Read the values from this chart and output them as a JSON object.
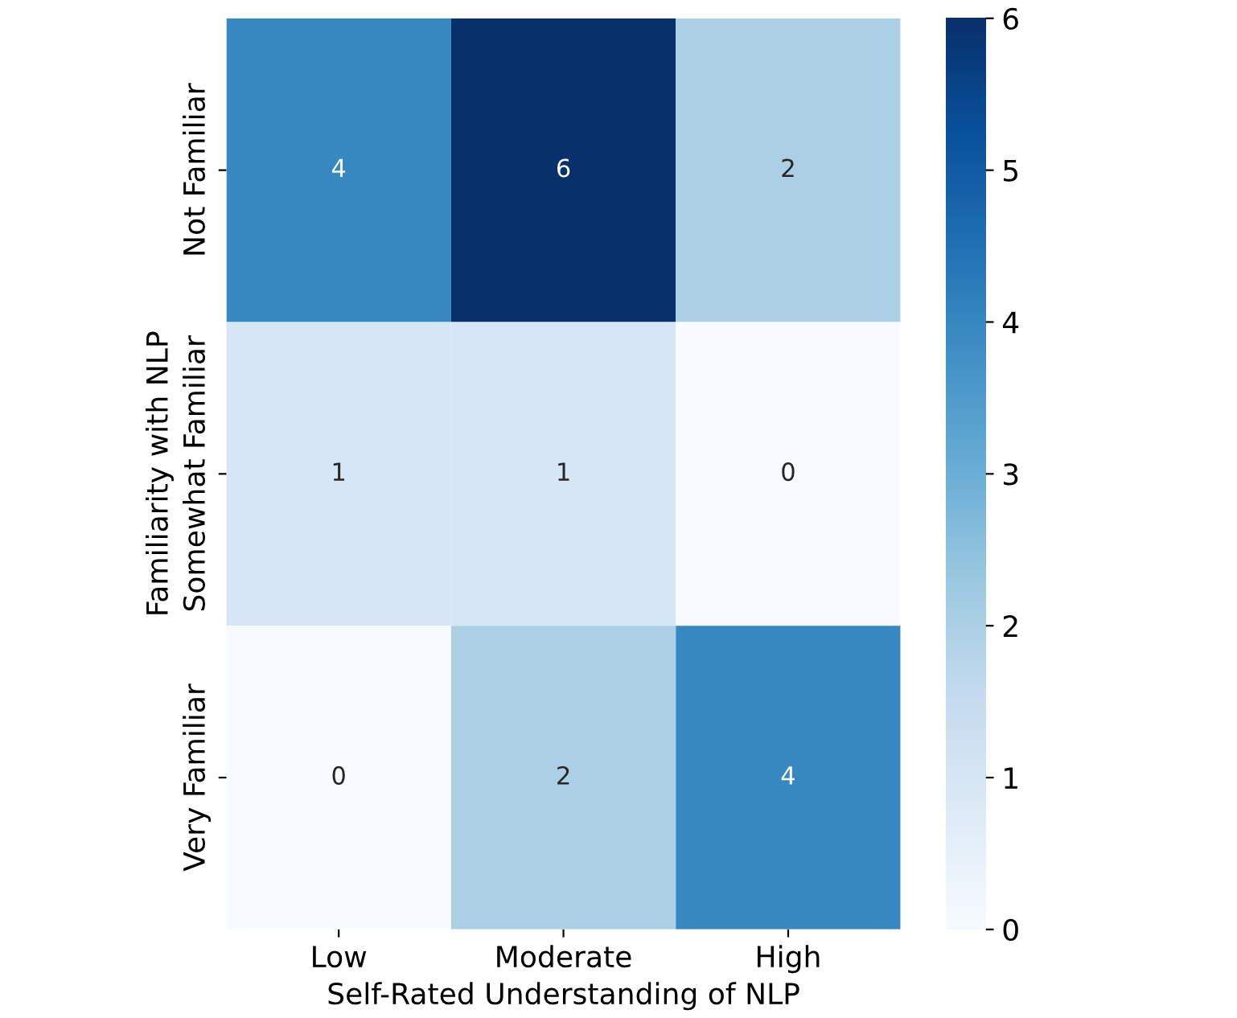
{
  "chart_data": {
    "type": "heatmap",
    "xlabel": "Self-Rated Understanding of NLP",
    "ylabel": "Familiarity with NLP",
    "categories": [
      "Low",
      "Moderate",
      "High"
    ],
    "y_categories": [
      "Not Familiar",
      "Somewhat Familiar",
      "Very Familiar"
    ],
    "cells": [
      [
        4,
        6,
        2
      ],
      [
        1,
        1,
        0
      ],
      [
        0,
        2,
        4
      ]
    ],
    "data_labels": true,
    "clim": [
      0,
      6
    ],
    "cticks": [
      0,
      1,
      2,
      3,
      4,
      5,
      6
    ]
  }
}
